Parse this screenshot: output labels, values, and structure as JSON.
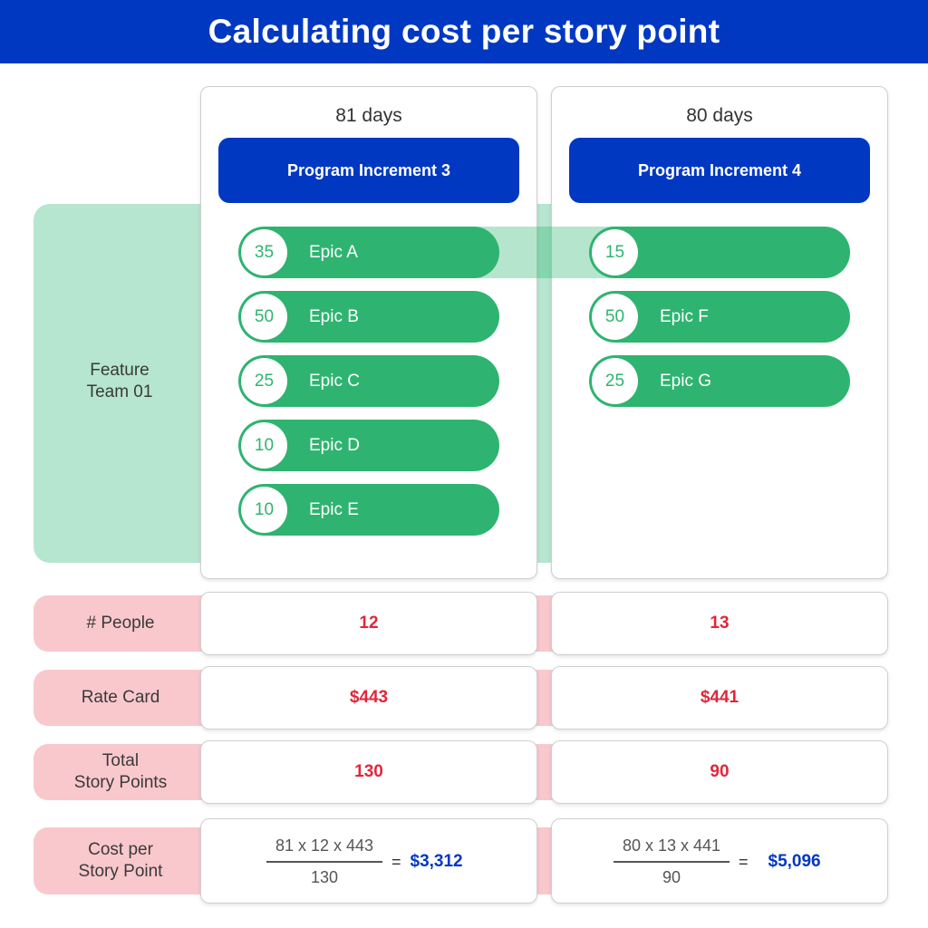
{
  "title": "Calculating cost per story point",
  "team": {
    "label": "Feature\nTeam 01"
  },
  "increments": [
    {
      "days": "81 days",
      "name": "Program Increment 3",
      "epics": [
        {
          "points": "35",
          "label": "Epic A"
        },
        {
          "points": "50",
          "label": "Epic B"
        },
        {
          "points": "25",
          "label": "Epic C"
        },
        {
          "points": "10",
          "label": "Epic D"
        },
        {
          "points": "10",
          "label": "Epic E"
        }
      ],
      "people": "12",
      "rate_card": "$443",
      "total_story_points": "130",
      "formula": {
        "numerator": "81 x 12 x 443",
        "denominator": "130",
        "equals": "=",
        "result": "$3,312"
      }
    },
    {
      "days": "80 days",
      "name": "Program Increment 4",
      "epics": [
        {
          "points": "15",
          "label": ""
        },
        {
          "points": "50",
          "label": "Epic F"
        },
        {
          "points": "25",
          "label": "Epic G"
        }
      ],
      "people": "13",
      "rate_card": "$441",
      "total_story_points": "90",
      "formula": {
        "numerator": "80 x 13 x 441",
        "denominator": "90",
        "equals": "=",
        "result": "$5,096"
      }
    }
  ],
  "rows": {
    "people": "# People",
    "rate_card": "Rate Card",
    "total_story_points": "Total\nStory Points",
    "cost_per_story_point": "Cost per\nStory Point"
  },
  "colors": {
    "header": "#0038c2",
    "epic": "#2eb470",
    "team_band": "#b6e6cf",
    "row_band": "#f9c8cc",
    "value": "#e0273a",
    "result": "#0038c2"
  }
}
